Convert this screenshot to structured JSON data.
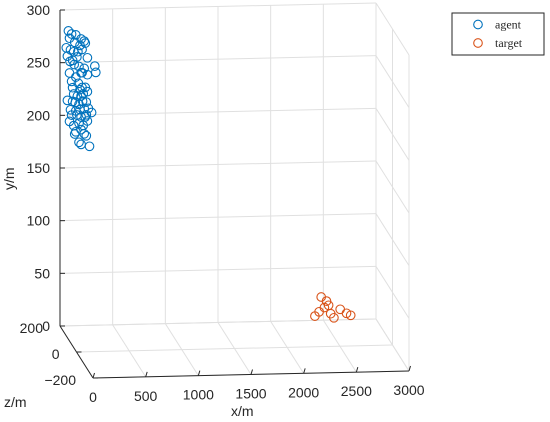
{
  "chart_data": {
    "type": "scatter",
    "title": "",
    "xlabel": "x/m",
    "ylabel": "y/m",
    "zlabel": "z/m",
    "xlim": [
      0,
      3000
    ],
    "ylim": [
      0,
      300
    ],
    "zlim": [
      -200,
      200
    ],
    "xticks": [
      "0",
      "500",
      "1000",
      "1500",
      "2000",
      "2500",
      "3000"
    ],
    "yticks": [
      "0",
      "50",
      "100",
      "150",
      "200",
      "250",
      "300"
    ],
    "zticks": [
      "−200",
      "0",
      "200"
    ],
    "grid": true,
    "legend_position": "top-right",
    "series": [
      {
        "name": "agent",
        "color": "#0072BD",
        "marker": "open-circle",
        "points": [
          [
            80,
            280
          ],
          [
            110,
            277
          ],
          [
            150,
            276
          ],
          [
            200,
            272
          ],
          [
            230,
            270
          ],
          [
            90,
            273
          ],
          [
            140,
            269
          ],
          [
            190,
            266
          ],
          [
            240,
            268
          ],
          [
            100,
            262
          ],
          [
            130,
            260
          ],
          [
            170,
            260
          ],
          [
            210,
            262
          ],
          [
            120,
            252
          ],
          [
            160,
            255
          ],
          [
            60,
            264
          ],
          [
            70,
            256
          ],
          [
            95,
            251
          ],
          [
            180,
            246
          ],
          [
            135,
            248
          ],
          [
            90,
            240
          ],
          [
            150,
            236
          ],
          [
            200,
            240
          ],
          [
            230,
            244
          ],
          [
            330,
            246
          ],
          [
            340,
            240
          ],
          [
            260,
            238
          ],
          [
            110,
            232
          ],
          [
            120,
            226
          ],
          [
            175,
            230
          ],
          [
            190,
            224
          ],
          [
            210,
            226
          ],
          [
            240,
            226
          ],
          [
            130,
            220
          ],
          [
            165,
            218
          ],
          [
            200,
            218
          ],
          [
            220,
            220
          ],
          [
            260,
            222
          ],
          [
            70,
            214
          ],
          [
            120,
            213
          ],
          [
            145,
            212
          ],
          [
            180,
            210
          ],
          [
            215,
            213
          ],
          [
            250,
            212
          ],
          [
            150,
            204
          ],
          [
            190,
            205
          ],
          [
            230,
            206
          ],
          [
            270,
            206
          ],
          [
            110,
            200
          ],
          [
            160,
            200
          ],
          [
            200,
            198
          ],
          [
            240,
            198
          ],
          [
            300,
            202
          ],
          [
            90,
            194
          ],
          [
            130,
            190
          ],
          [
            180,
            192
          ],
          [
            220,
            190
          ],
          [
            260,
            194
          ],
          [
            150,
            184
          ],
          [
            200,
            186
          ],
          [
            230,
            182
          ],
          [
            180,
            174
          ],
          [
            200,
            172
          ],
          [
            250,
            180
          ],
          [
            280,
            170
          ],
          [
            140,
            182
          ],
          [
            250,
            200
          ],
          [
            210,
            240
          ],
          [
            260,
            254
          ],
          [
            100,
            205
          ]
        ]
      },
      {
        "name": "target",
        "color": "#D95319",
        "marker": "open-circle",
        "points": [
          [
            2480,
            22
          ],
          [
            2530,
            18
          ],
          [
            2510,
            12
          ],
          [
            2550,
            14
          ],
          [
            2460,
            8
          ],
          [
            2570,
            6
          ],
          [
            2660,
            10
          ],
          [
            2720,
            6
          ],
          [
            2760,
            4
          ],
          [
            2420,
            4
          ],
          [
            2600,
            2
          ]
        ]
      }
    ]
  }
}
